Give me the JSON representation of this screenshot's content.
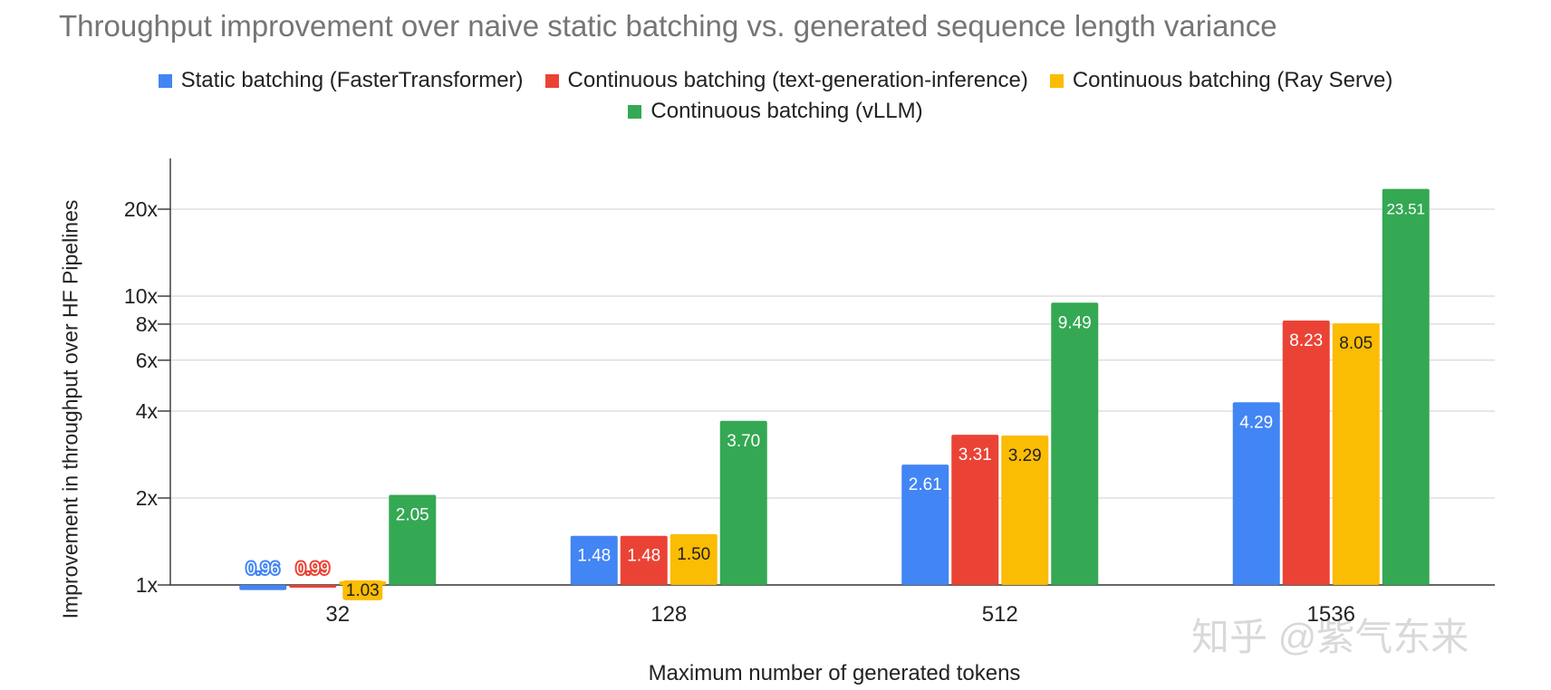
{
  "chart_data": {
    "type": "bar",
    "title": "Throughput improvement over naive static batching vs. generated sequence length variance",
    "xlabel": "Maximum number of generated tokens",
    "ylabel": "Improvement in throughput over HF Pipelines",
    "yscale": "log",
    "ylim": [
      1,
      27
    ],
    "yticks": [
      1,
      2,
      4,
      6,
      8,
      10,
      20
    ],
    "ytick_labels": [
      "1x",
      "2x",
      "4x",
      "6x",
      "8x",
      "10x",
      "20x"
    ],
    "categories": [
      "32",
      "128",
      "512",
      "1536"
    ],
    "series": [
      {
        "name": "Static batching (FasterTransformer)",
        "color": "#4285F4",
        "values": [
          0.96,
          1.48,
          2.61,
          4.29
        ],
        "labels": [
          "0.96",
          "1.48",
          "2.61",
          "4.29"
        ]
      },
      {
        "name": "Continuous batching (text-generation-inference)",
        "color": "#EA4335",
        "values": [
          0.99,
          1.48,
          3.31,
          8.23
        ],
        "labels": [
          "0.99",
          "1.48",
          "3.31",
          "8.23"
        ]
      },
      {
        "name": "Continuous batching (Ray Serve)",
        "color": "#FBBC04",
        "values": [
          1.03,
          1.5,
          3.29,
          8.05
        ],
        "labels": [
          "1.03",
          "1.50",
          "3.29",
          "8.05"
        ]
      },
      {
        "name": "Continuous batching (vLLM)",
        "color": "#34A853",
        "values": [
          2.05,
          3.7,
          9.49,
          23.51
        ],
        "labels": [
          "2.05",
          "3.70",
          "9.49",
          "23.51"
        ]
      }
    ],
    "legend_position": "top"
  },
  "watermark": "知乎 @紫气东来"
}
